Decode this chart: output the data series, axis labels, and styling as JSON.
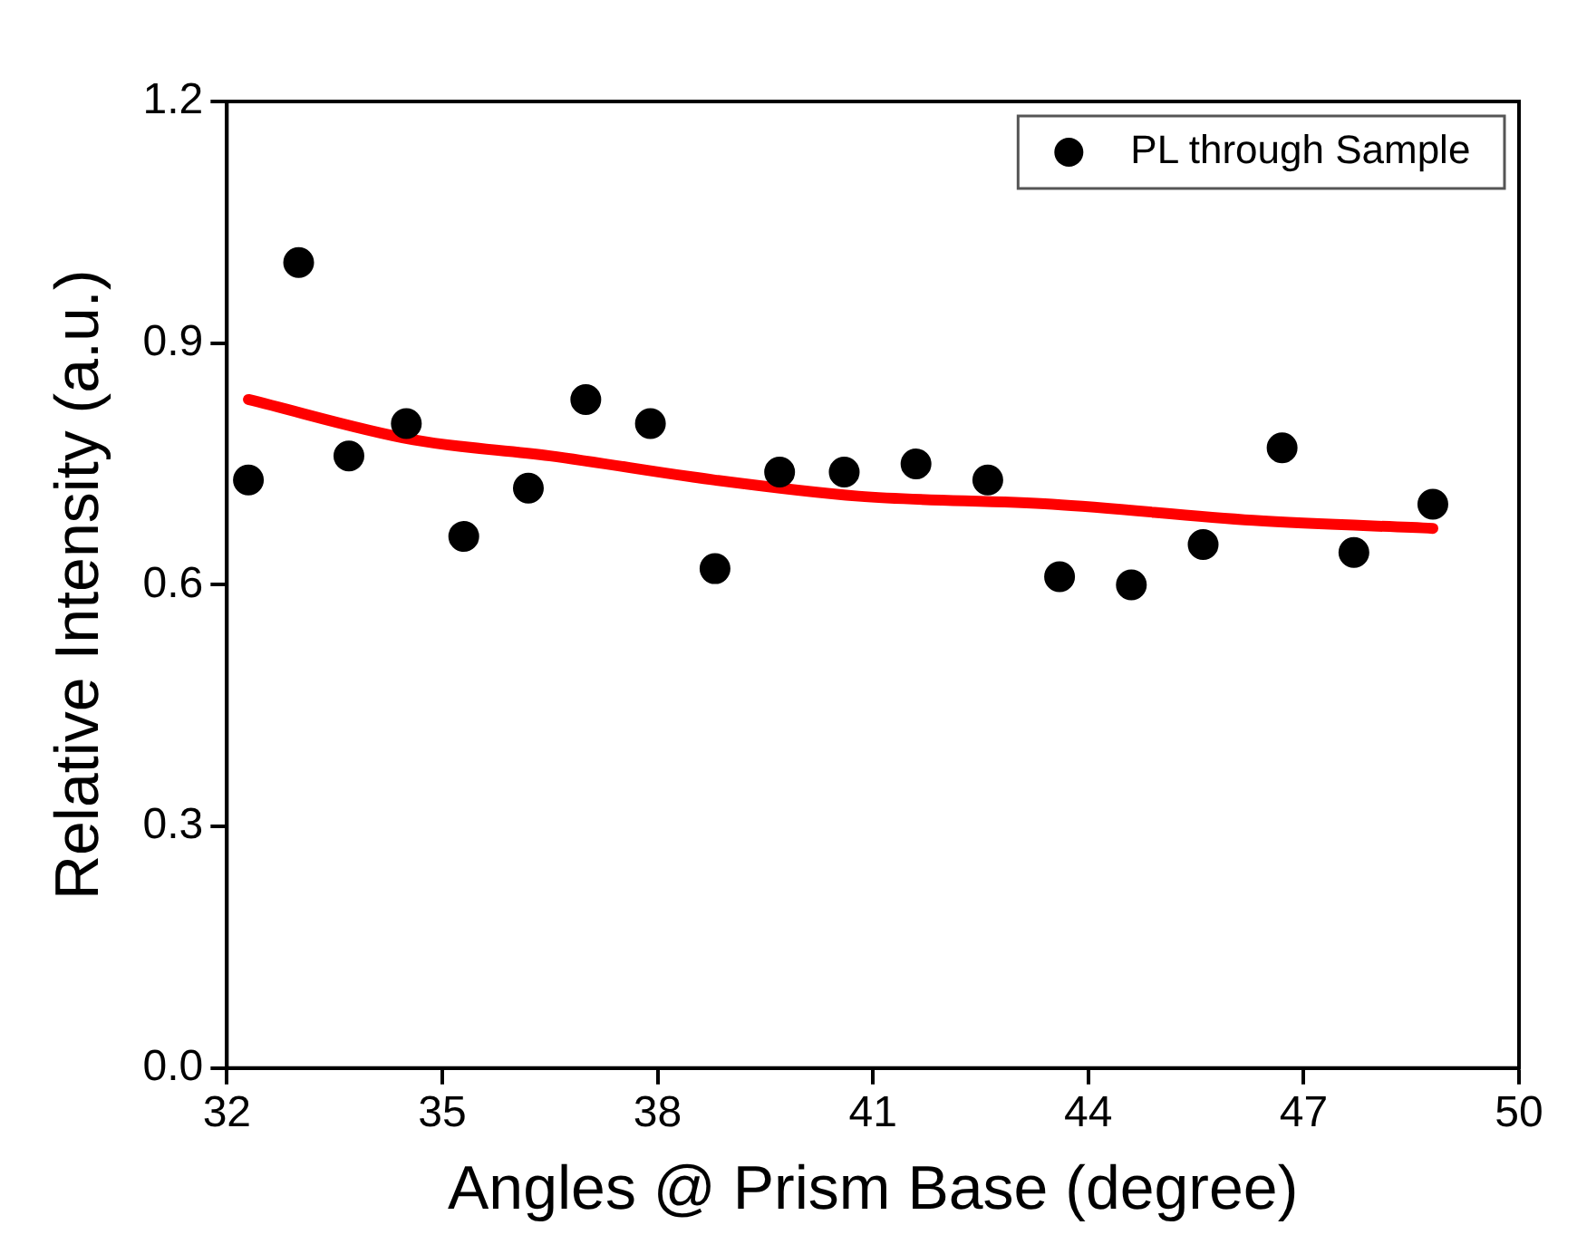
{
  "chart_data": {
    "type": "scatter",
    "xlabel": "Angles @ Prism Base (degree)",
    "ylabel": "Relative Intensity (a.u.)",
    "xlim": [
      32,
      50
    ],
    "xticks": [
      32,
      35,
      38,
      41,
      44,
      47,
      50
    ],
    "ylim": [
      0,
      1.2
    ],
    "yticks": [
      {
        "value": 0,
        "label": "0.0"
      },
      0.3,
      0.6,
      0.9,
      1.2
    ],
    "grid": false,
    "legend": "top right",
    "marker": "circle",
    "series": [
      {
        "name": "PL through Sample",
        "color": "#000000",
        "x": [
          32.3,
          33.0,
          33.7,
          34.5,
          35.3,
          36.2,
          37.0,
          37.9,
          38.8,
          39.7,
          40.6,
          41.6,
          42.6,
          43.6,
          44.6,
          45.6,
          46.7,
          47.7,
          48.8
        ],
        "values": [
          0.73,
          1.0,
          0.76,
          0.8,
          0.66,
          0.72,
          0.83,
          0.8,
          0.62,
          0.74,
          0.74,
          0.75,
          0.73,
          0.61,
          0.6,
          0.65,
          0.77,
          0.64,
          0.7
        ]
      },
      {
        "type": "line",
        "color": "#ff0000",
        "marker": "none",
        "x": [
          32.3,
          34.6,
          36.5,
          38.8,
          40.8,
          43.5,
          46.3,
          48.8
        ],
        "values": [
          0.83,
          0.78,
          0.76,
          0.73,
          0.71,
          0.7,
          0.68,
          0.67
        ]
      }
    ]
  }
}
